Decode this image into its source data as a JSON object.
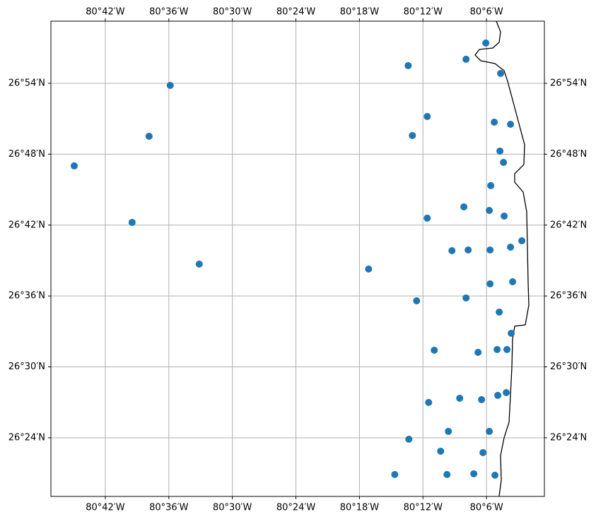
{
  "chart_data": {
    "type": "scatter",
    "color": "#1f77b4",
    "grid": true,
    "xlim": [
      -80.7856,
      -80.0089
    ],
    "ylim": [
      26.3173,
      26.9876
    ],
    "xticks": [
      {
        "value": -80.7,
        "label": "80°42′W"
      },
      {
        "value": -80.6,
        "label": "80°36′W"
      },
      {
        "value": -80.5,
        "label": "80°30′W"
      },
      {
        "value": -80.4,
        "label": "80°24′W"
      },
      {
        "value": -80.3,
        "label": "80°18′W"
      },
      {
        "value": -80.2,
        "label": "80°12′W"
      },
      {
        "value": -80.1,
        "label": "80°6′W"
      }
    ],
    "yticks": [
      {
        "value": 26.4,
        "label": "26°24′N"
      },
      {
        "value": 26.5,
        "label": "26°30′N"
      },
      {
        "value": 26.6,
        "label": "26°36′N"
      },
      {
        "value": 26.7,
        "label": "26°42′N"
      },
      {
        "value": 26.8,
        "label": "26°48′N"
      },
      {
        "value": 26.9,
        "label": "26°54′N"
      }
    ],
    "x": [
      -80.1011,
      -80.1322,
      -80.2233,
      -80.0778,
      -80.5978,
      -80.1933,
      -80.6311,
      -80.2167,
      -80.0878,
      -80.0622,
      -80.0789,
      -80.0733,
      -80.7489,
      -80.0933,
      -80.1356,
      -80.0956,
      -80.0722,
      -80.1933,
      -80.6578,
      -80.0444,
      -80.0622,
      -80.1544,
      -80.1289,
      -80.0944,
      -80.5522,
      -80.2856,
      -80.0944,
      -80.0589,
      -80.21,
      -80.1322,
      -80.08,
      -80.0611,
      -80.1822,
      -80.1133,
      -80.0833,
      -80.0678,
      -80.0689,
      -80.0822,
      -80.1422,
      -80.1078,
      -80.1911,
      -80.16,
      -80.0956,
      -80.2222,
      -80.1722,
      -80.1056,
      -80.2444,
      -80.1622,
      -80.12,
      -80.0867
    ],
    "values": [
      26.9568,
      26.9339,
      26.9249,
      26.9139,
      26.897,
      26.8532,
      26.8253,
      26.8263,
      26.8452,
      26.8422,
      26.8044,
      26.7884,
      26.7835,
      26.7556,
      26.7257,
      26.7207,
      26.7127,
      26.7098,
      26.7038,
      26.6779,
      26.6689,
      26.6639,
      26.6649,
      26.6649,
      26.645,
      26.638,
      26.6171,
      26.6201,
      26.5932,
      26.5972,
      26.5773,
      26.5474,
      26.5235,
      26.5205,
      26.5245,
      26.5245,
      26.4637,
      26.4598,
      26.4558,
      26.4538,
      26.4498,
      26.409,
      26.409,
      26.398,
      26.3811,
      26.3791,
      26.3482,
      26.3482,
      26.3492,
      26.3472
    ]
  }
}
